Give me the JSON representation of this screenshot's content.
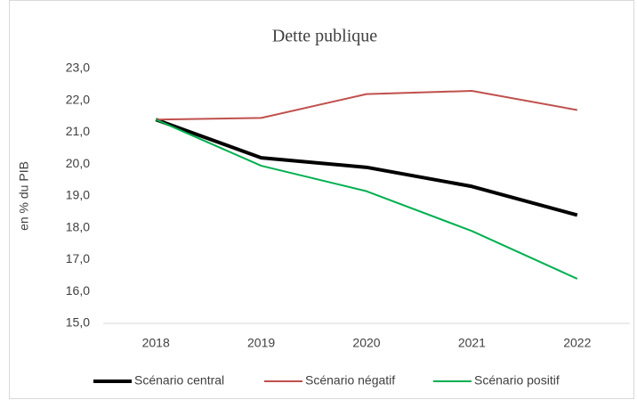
{
  "chart_data": {
    "type": "line",
    "title": "Dette publique",
    "y_label": "en % du PIB",
    "categories": [
      "2018",
      "2019",
      "2020",
      "2021",
      "2022"
    ],
    "series": [
      {
        "name": "Scénario central",
        "color": "#000000",
        "width": 4,
        "values": [
          21.4,
          20.2,
          19.9,
          19.3,
          18.4
        ]
      },
      {
        "name": "Scénario négatif",
        "color": "#c0504d",
        "width": 2,
        "values": [
          21.4,
          21.45,
          22.2,
          22.3,
          21.7
        ]
      },
      {
        "name": "Scénario positif",
        "color": "#00b050",
        "width": 2,
        "values": [
          21.4,
          19.95,
          19.15,
          17.9,
          16.4
        ]
      }
    ],
    "ylim": [
      15,
      23
    ],
    "yticks": [
      {
        "value": 15,
        "label": "15,0"
      },
      {
        "value": 16,
        "label": "16,0"
      },
      {
        "value": 17,
        "label": "17,0"
      },
      {
        "value": 18,
        "label": "18,0"
      },
      {
        "value": 19,
        "label": "19,0"
      },
      {
        "value": 20,
        "label": "20,0"
      },
      {
        "value": 21,
        "label": "21,0"
      },
      {
        "value": 22,
        "label": "22,0"
      },
      {
        "value": 23,
        "label": "23,0"
      }
    ],
    "grid": false,
    "legend": "bottom"
  }
}
